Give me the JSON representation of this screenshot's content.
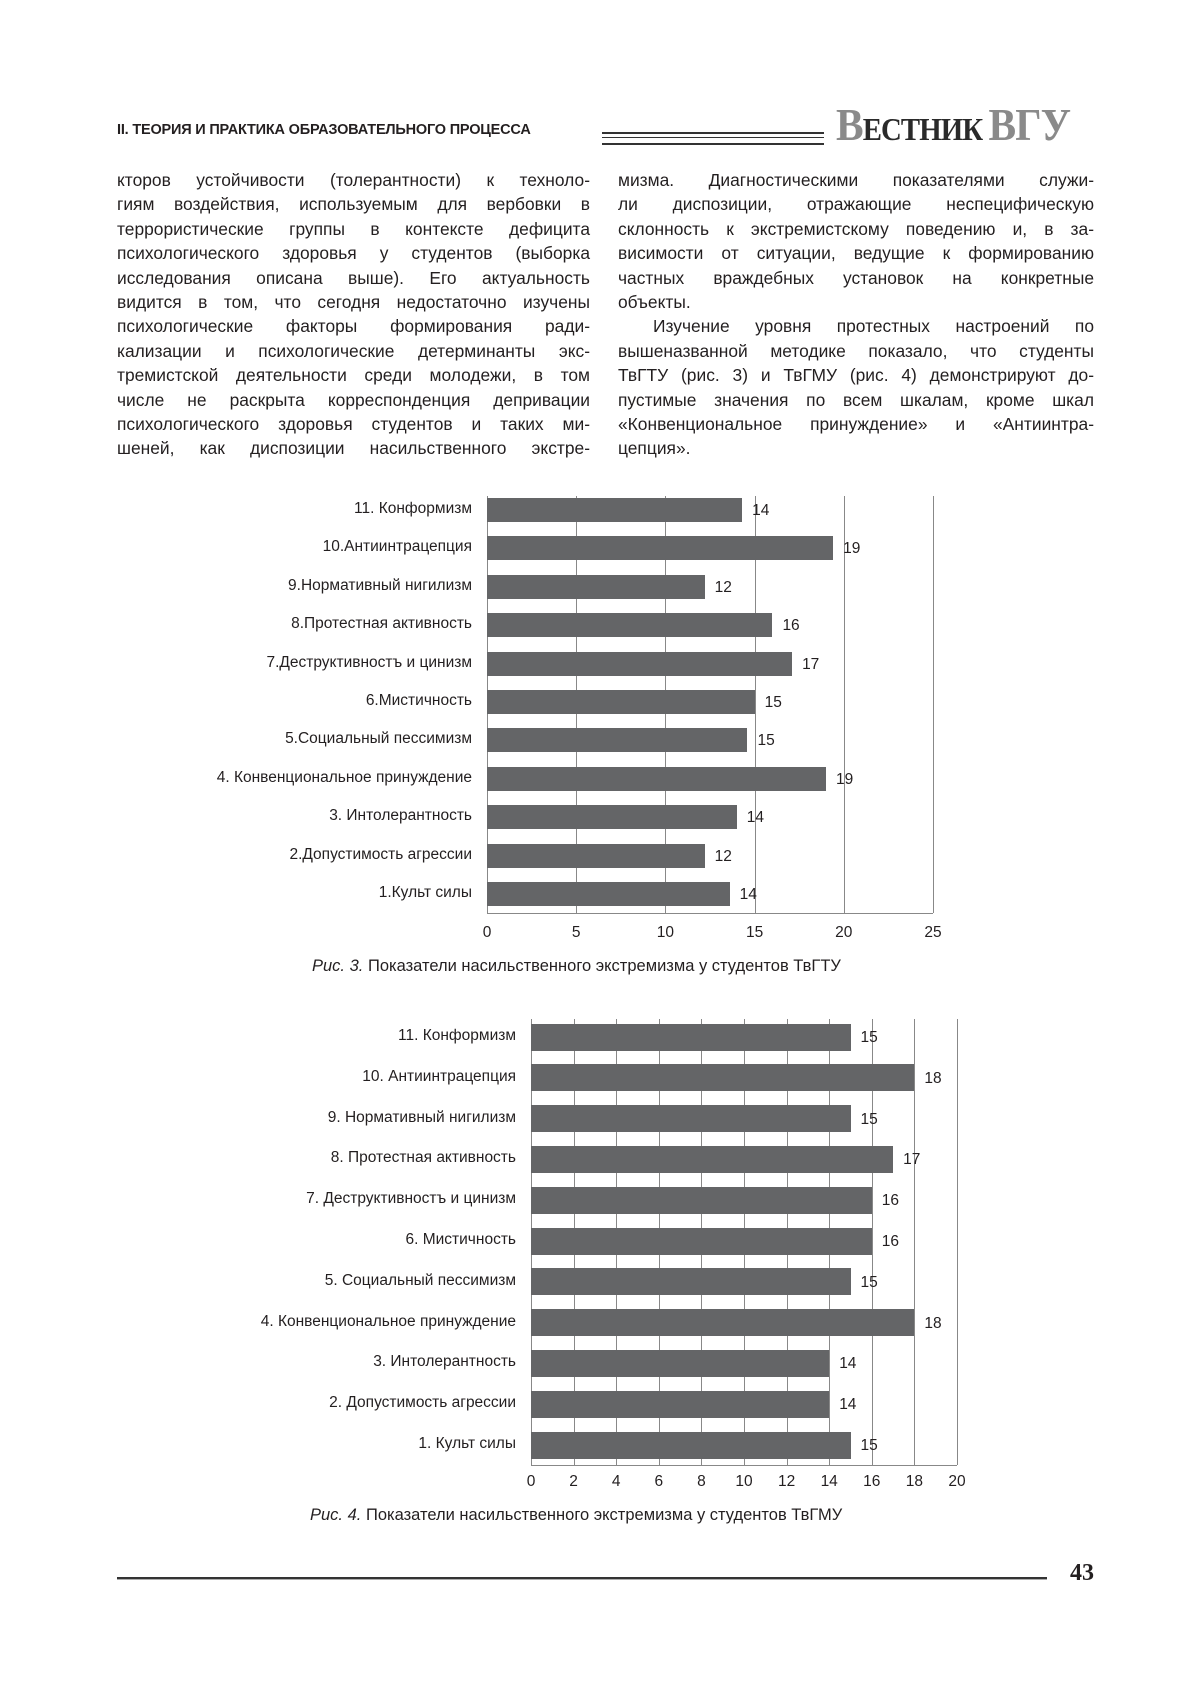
{
  "header": {
    "section": "II. ТЕОРИЯ И ПРАКТИКА ОБРАЗОВАТЕЛЬНОГО ПРОЦЕССА",
    "journal_initial": "В",
    "journal_rest": "ЕСТНИК",
    "journal_abbr": "ВГУ"
  },
  "body": {
    "left_lines": [
      "кторов устойчивости (толерантности) к техноло-",
      "гиям воздействия, используемым для вербовки в",
      "террористические группы в контексте дефицита",
      "психологического здоровья у студентов (выборка",
      "исследования описана выше). Его актуальность",
      "видится в том, что сегодня недостаточно изучены",
      "психологические факторы формирования ради-",
      "кализации и психологические детерминанты экс-",
      "тремистской деятельности среди молодежи, в том",
      "числе не раскрыта корреспонденция депривации",
      "психологического здоровья студентов и таких ми-",
      "шеней, как диспозиции насильственного экстре-"
    ],
    "right_lines": [
      "мизма. Диагностическими показателями служи-",
      "ли диспозиции, отражающие неспецифическую",
      "склонность к экстремистскому поведению и, в за-",
      "висимости от ситуации, ведущие к формированию",
      "частных враждебных установок на конкретные",
      "объекты.",
      "Изучение уровня протестных настроений по",
      "вышеназванной методике показало, что студенты",
      "ТвГТУ (рис. 3) и ТвГМУ (рис. 4) демонстрируют до-",
      "пустимые значения по всем шкалам, кроме шкал",
      "«Конвенциональное принуждение» и «Антиинтра-",
      "цепция»."
    ]
  },
  "chart_data": [
    {
      "type": "bar",
      "orientation": "horizontal",
      "categories": [
        "11. Конформизм",
        "10.Антиинтрацепция",
        "9.Нормативный нигилизм",
        "8.Протестная активность",
        "7.Деструктивностъ и цинизм",
        "6.Мистичность",
        "5.Социальный пессимизм",
        "4. Конвенциональное принуждение",
        "3. Интолерантность",
        "2.Допустимость агрессии",
        "1.Культ силы"
      ],
      "values": [
        14.3,
        19.4,
        12.2,
        16,
        17.1,
        15,
        14.6,
        19,
        14,
        12.2,
        13.6
      ],
      "data_labels": [
        "14",
        "19",
        "12",
        "16",
        "17",
        "15",
        "15",
        "19",
        "14",
        "12",
        "14"
      ],
      "xlim": [
        0,
        25
      ],
      "xticks": [
        "0",
        "5",
        "10",
        "15",
        "20",
        "25"
      ],
      "grid": true,
      "bar_color": "#646567",
      "caption_prefix": "Рис. 3.",
      "caption": " Показатели насильственного экстремизма у студентов ТвГТУ"
    },
    {
      "type": "bar",
      "orientation": "horizontal",
      "categories": [
        "11. Конформизм",
        "10. Антиинтрацепция",
        "9. Нормативный нигилизм",
        "8. Протестная активность",
        "7. Деструктивностъ и цинизм",
        "6. Мистичность",
        "5. Социальный пессимизм",
        "4. Конвенциональное принуждение",
        "3. Интолерантность",
        "2. Допустимость агрессии",
        "1. Культ силы"
      ],
      "values": [
        15,
        18,
        15,
        17,
        16,
        16,
        15,
        18,
        14,
        14,
        15
      ],
      "data_labels": [
        "15",
        "18",
        "15",
        "17",
        "16",
        "16",
        "15",
        "18",
        "14",
        "14",
        "15"
      ],
      "xlim": [
        0,
        20
      ],
      "xticks": [
        "0",
        "2",
        "4",
        "6",
        "8",
        "10",
        "12",
        "14",
        "16",
        "18",
        "20"
      ],
      "grid": true,
      "bar_color": "#646567",
      "caption_prefix": "Рис. 4.",
      "caption": " Показатели насильственного экстремизма у студентов ТвГМУ"
    }
  ],
  "footer": {
    "page_number": "43"
  }
}
